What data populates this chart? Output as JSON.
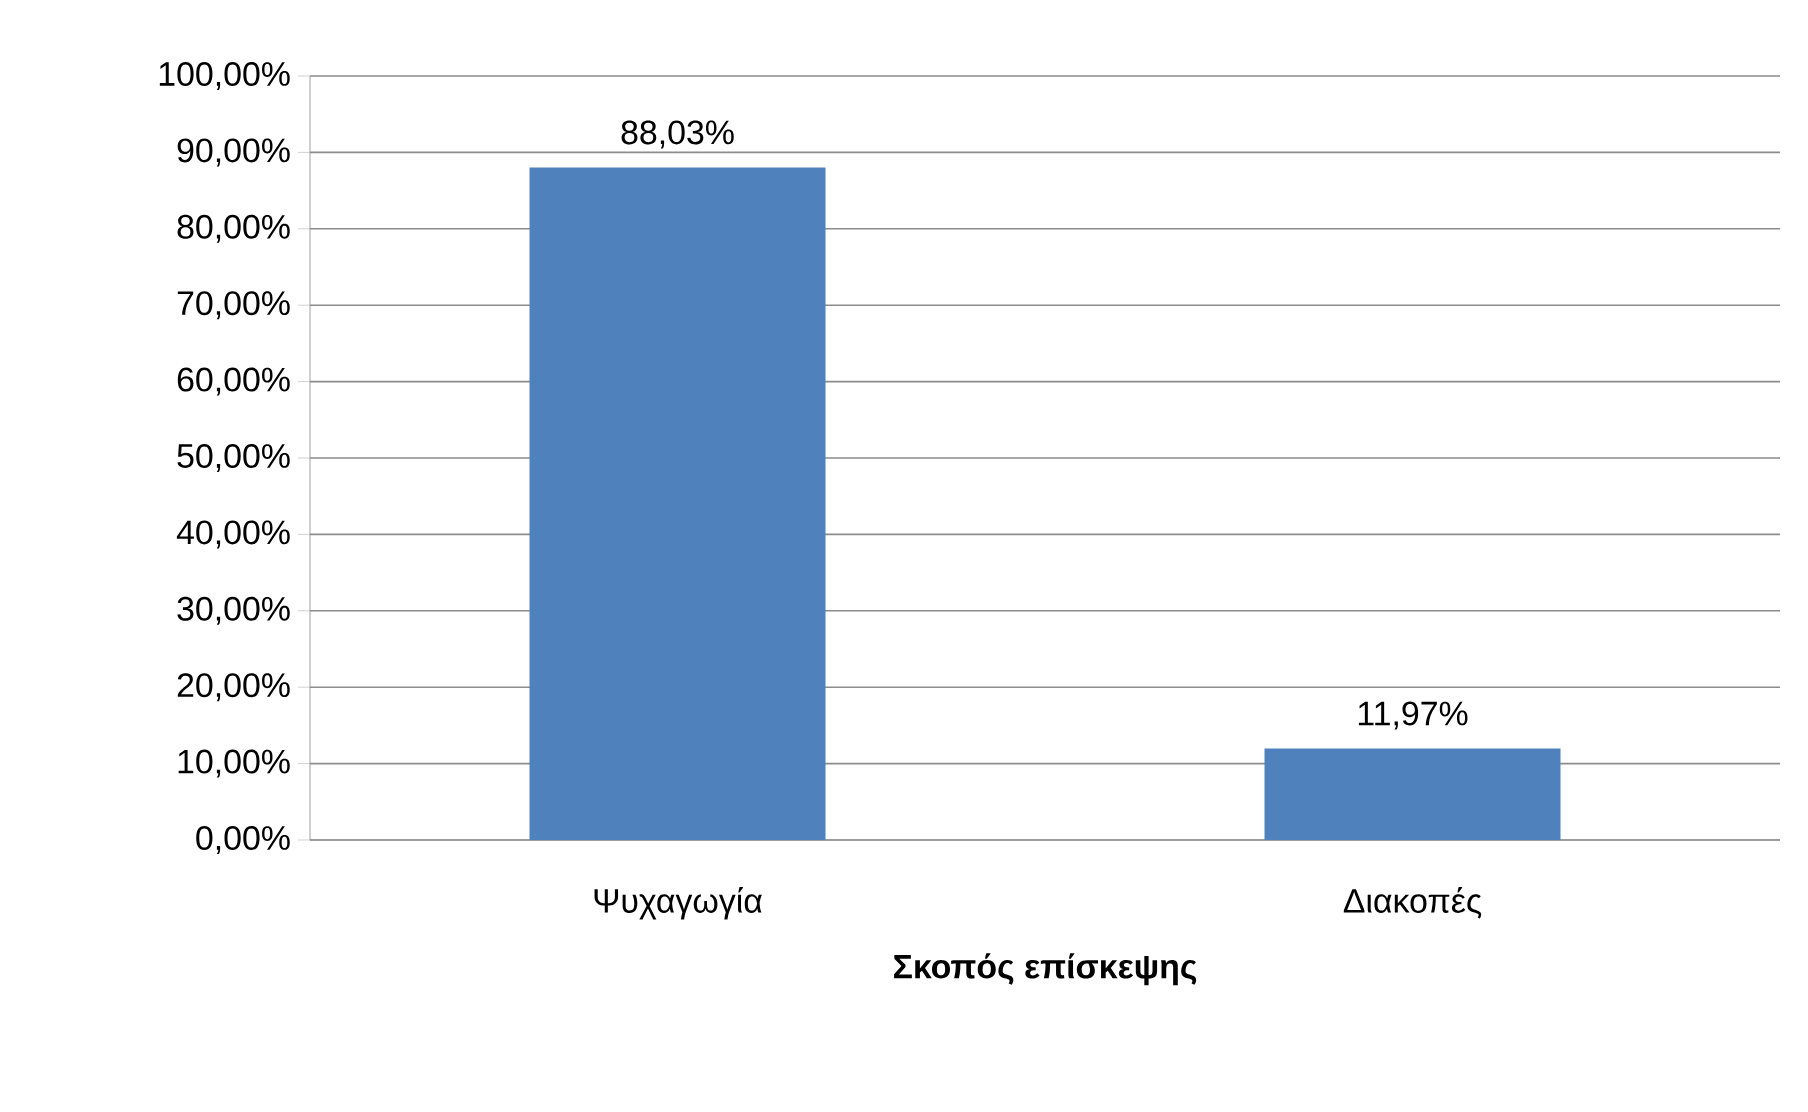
{
  "chart_data": {
    "type": "bar",
    "xlabel": "**Σκοπός επίσκεψης**",
    "categories": [
      "Ψυχαγωγία",
      "Διακοπές"
    ],
    "values": [
      88.03,
      11.97
    ],
    "color": "#4f81bd",
    "value_labels": [
      "88,03%",
      "11,97%"
    ],
    "ylim": [
      0,
      100
    ],
    "yticks": [
      {
        "value": 0,
        "label": "0,00%"
      },
      {
        "value": 10,
        "label": "10,00%"
      },
      {
        "value": 20,
        "label": "20,00%"
      },
      {
        "value": 30,
        "label": "30,00%"
      },
      {
        "value": 40,
        "label": "40,00%"
      },
      {
        "value": 50,
        "label": "50,00%"
      },
      {
        "value": 60,
        "label": "60,00%"
      },
      {
        "value": 70,
        "label": "70,00%"
      },
      {
        "value": 80,
        "label": "80,00%"
      },
      {
        "value": 90,
        "label": "90,00%"
      },
      {
        "value": 100,
        "label": "100,00%"
      }
    ],
    "grid": "y"
  }
}
